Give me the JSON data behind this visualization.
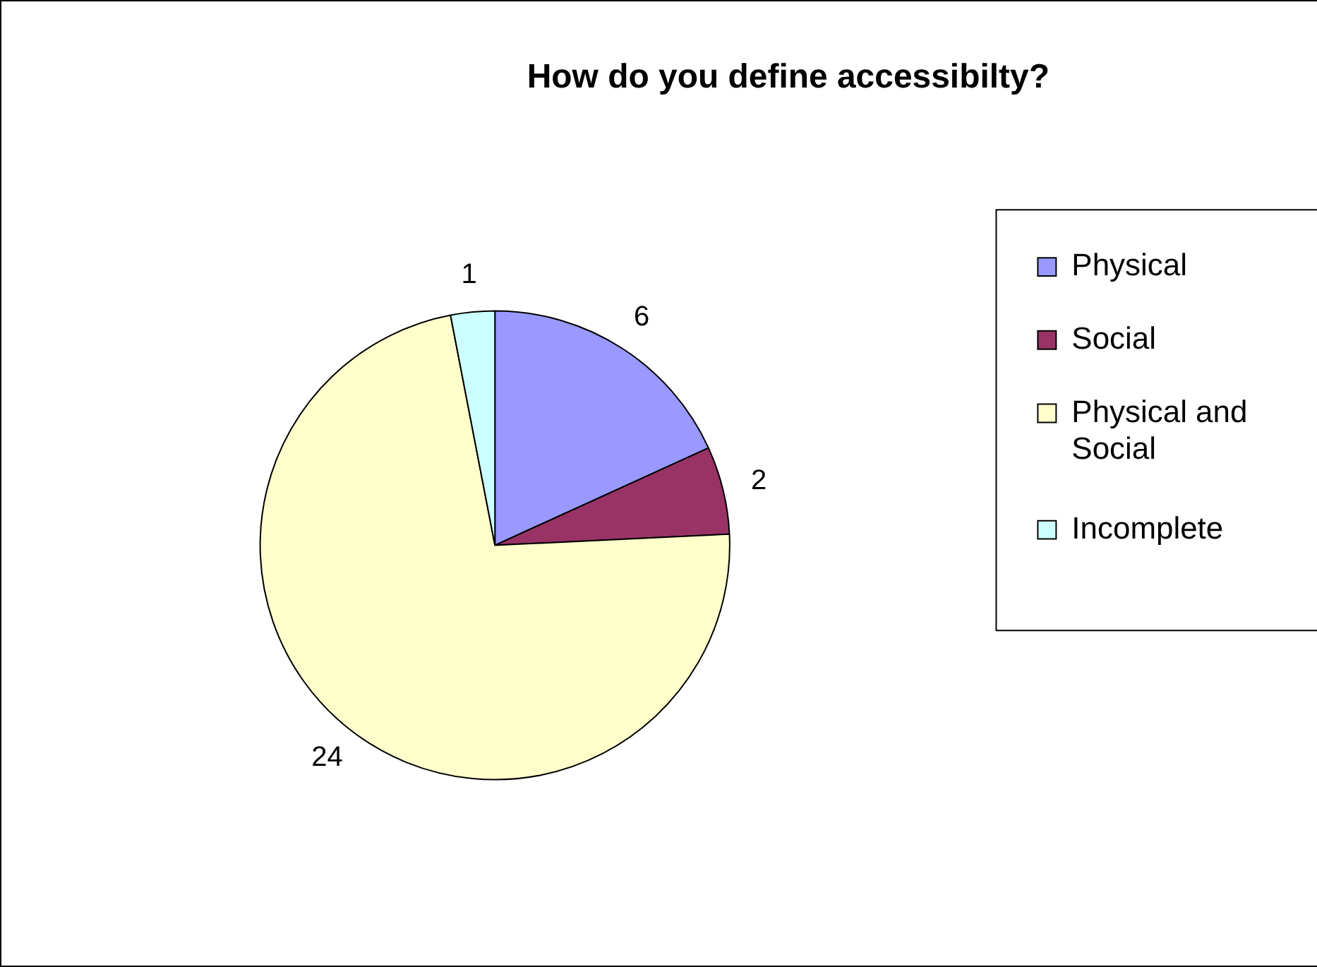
{
  "chart_data": {
    "type": "pie",
    "title": "How do you define accessibilty?",
    "categories": [
      "Physical",
      "Social",
      "Physical and Social",
      "Incomplete"
    ],
    "values": [
      6,
      2,
      24,
      1
    ],
    "colors": [
      "#9999ff",
      "#993366",
      "#ffffcc",
      "#ccffff"
    ],
    "data_labels": true,
    "legend": "right"
  }
}
